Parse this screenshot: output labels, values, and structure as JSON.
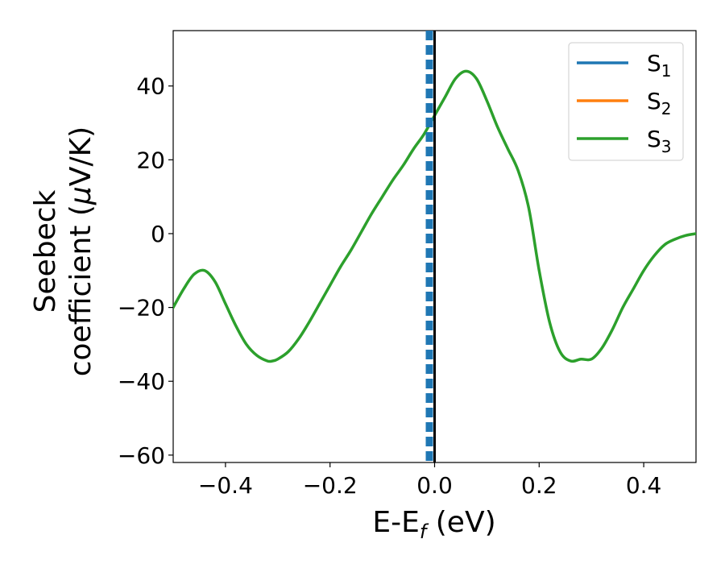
{
  "chart_data": {
    "type": "line",
    "title": "",
    "xlabel": {
      "main": "E-E",
      "sub": "f",
      "unit": " (eV)"
    },
    "ylabel": {
      "line1": "Seebeck",
      "line2_pre": "coefficient  (",
      "mu": "μ",
      "line2_post": "V/K)"
    },
    "xlim": [
      -0.5,
      0.5
    ],
    "ylim": [
      -62,
      55
    ],
    "xticks": [
      -0.4,
      -0.2,
      0.0,
      0.2,
      0.4
    ],
    "xtick_labels": [
      "−0.4",
      "−0.2",
      "0.0",
      "0.2",
      "0.4"
    ],
    "yticks": [
      -60,
      -40,
      -20,
      0,
      20,
      40
    ],
    "ytick_labels": [
      "−60",
      "−40",
      "−20",
      "0",
      "20",
      "40"
    ],
    "grid": false,
    "legend_position": "top-right",
    "colors": {
      "s1": "#1f77b4",
      "s2": "#ff7f0e",
      "s3": "#2ca02c",
      "fermi_line": "#000000"
    },
    "fermi_line_x": 0.0,
    "dashed_marker_x": -0.01,
    "series": [
      {
        "name": "S",
        "sub": "1",
        "color": "#1f77b4",
        "x": [],
        "y": []
      },
      {
        "name": "S",
        "sub": "2",
        "color": "#ff7f0e",
        "x": [],
        "y": []
      },
      {
        "name": "S",
        "sub": "3",
        "color": "#2ca02c",
        "x": [
          -0.5,
          -0.48,
          -0.46,
          -0.44,
          -0.42,
          -0.4,
          -0.38,
          -0.36,
          -0.34,
          -0.32,
          -0.31,
          -0.3,
          -0.28,
          -0.26,
          -0.24,
          -0.22,
          -0.2,
          -0.18,
          -0.16,
          -0.14,
          -0.12,
          -0.1,
          -0.08,
          -0.06,
          -0.04,
          -0.02,
          0.0,
          0.02,
          0.04,
          0.06,
          0.08,
          0.1,
          0.12,
          0.14,
          0.16,
          0.18,
          0.2,
          0.22,
          0.24,
          0.26,
          0.28,
          0.3,
          0.32,
          0.34,
          0.36,
          0.38,
          0.4,
          0.42,
          0.44,
          0.46,
          0.48,
          0.5
        ],
        "y": [
          -20,
          -15,
          -11,
          -10,
          -13,
          -19,
          -25,
          -30,
          -33,
          -34.5,
          -34.5,
          -34,
          -32,
          -28.5,
          -24,
          -19,
          -14,
          -9,
          -4.5,
          0.5,
          5.5,
          10,
          14.5,
          18.5,
          23,
          27,
          32,
          37,
          42,
          44,
          42,
          36,
          29,
          23,
          17,
          7,
          -10,
          -24,
          -32,
          -34.5,
          -34,
          -34,
          -31,
          -26,
          -20,
          -15,
          -10,
          -6,
          -3,
          -1.5,
          -0.5,
          0
        ]
      }
    ]
  }
}
